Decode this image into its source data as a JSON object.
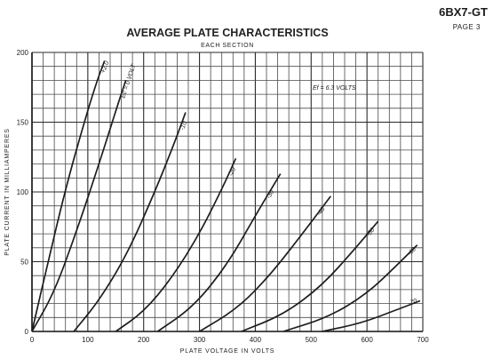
{
  "header": {
    "tube_type": "6BX7-GT",
    "page": "PAGE 3"
  },
  "chart_data": {
    "type": "line",
    "title": "AVERAGE PLATE CHARACTERISTICS",
    "subtitle": "EACH SECTION",
    "xlabel": "PLATE VOLTAGE IN VOLTS",
    "ylabel": "PLATE CURRENT IN MILLIAMPERES",
    "xlim": [
      0,
      700
    ],
    "ylim": [
      0,
      200
    ],
    "x_ticks": [
      "0",
      "100",
      "200",
      "300",
      "400",
      "500",
      "600",
      "700"
    ],
    "y_ticks": [
      "0",
      "50",
      "100",
      "150",
      "200"
    ],
    "grid": true,
    "note": "Ef = 6.3 VOLTS",
    "series": [
      {
        "name": "+2.0",
        "x": [
          0,
          30,
          60,
          90,
          115,
          130
        ],
        "y": [
          0,
          52,
          102,
          145,
          178,
          194
        ]
      },
      {
        "name": "Ec = 0 VOLT",
        "x": [
          0,
          40,
          80,
          120,
          150,
          168
        ],
        "y": [
          0,
          28,
          72,
          120,
          158,
          180
        ]
      },
      {
        "name": "-10",
        "x": [
          75,
          120,
          170,
          220,
          255,
          275
        ],
        "y": [
          0,
          22,
          55,
          100,
          135,
          157
        ]
      },
      {
        "name": "-20",
        "x": [
          150,
          200,
          250,
          300,
          340,
          365
        ],
        "y": [
          0,
          14,
          38,
          70,
          102,
          124
        ]
      },
      {
        "name": "-30",
        "x": [
          225,
          290,
          350,
          400,
          445
        ],
        "y": [
          0,
          18,
          48,
          83,
          113
        ]
      },
      {
        "name": "-40",
        "x": [
          300,
          370,
          430,
          490,
          535
        ],
        "y": [
          0,
          17,
          42,
          73,
          97
        ]
      },
      {
        "name": "-50",
        "x": [
          375,
          450,
          520,
          580,
          620
        ],
        "y": [
          0,
          12,
          33,
          60,
          79
        ]
      },
      {
        "name": "-60",
        "x": [
          450,
          530,
          600,
          655,
          690
        ],
        "y": [
          0,
          10,
          27,
          48,
          62
        ]
      },
      {
        "name": "-70",
        "x": [
          520,
          590,
          650,
          695
        ],
        "y": [
          0,
          6,
          15,
          22
        ]
      }
    ]
  }
}
